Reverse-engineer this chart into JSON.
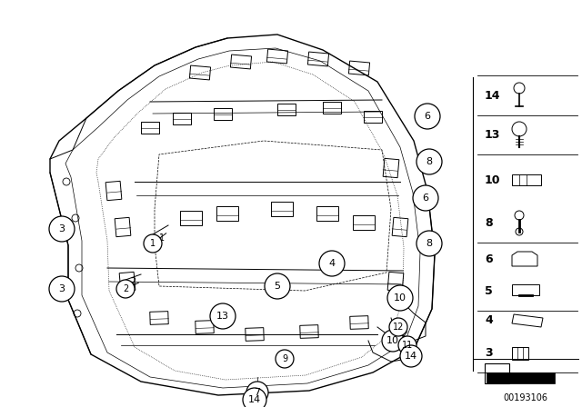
{
  "bg_color": "#ffffff",
  "fig_width": 6.4,
  "fig_height": 4.48,
  "dpi": 100,
  "ref_number": "00193106",
  "main_color": "#000000",
  "fig_bgcolor": "#ffffff"
}
